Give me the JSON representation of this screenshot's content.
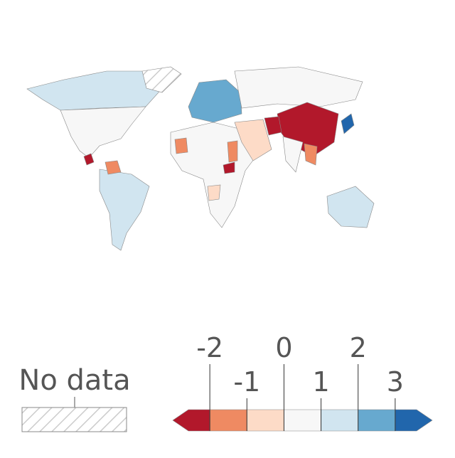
{
  "legend": {
    "no_data_label": "No data",
    "lim": [
      -3,
      4
    ],
    "ticks": [
      -2,
      -1,
      0,
      1,
      2,
      3
    ],
    "colors": [
      "#b2182b",
      "#ef8a62",
      "#fddbc7",
      "#f7f7f7",
      "#d1e5f0",
      "#67a9cf",
      "#2166ac"
    ]
  }
}
